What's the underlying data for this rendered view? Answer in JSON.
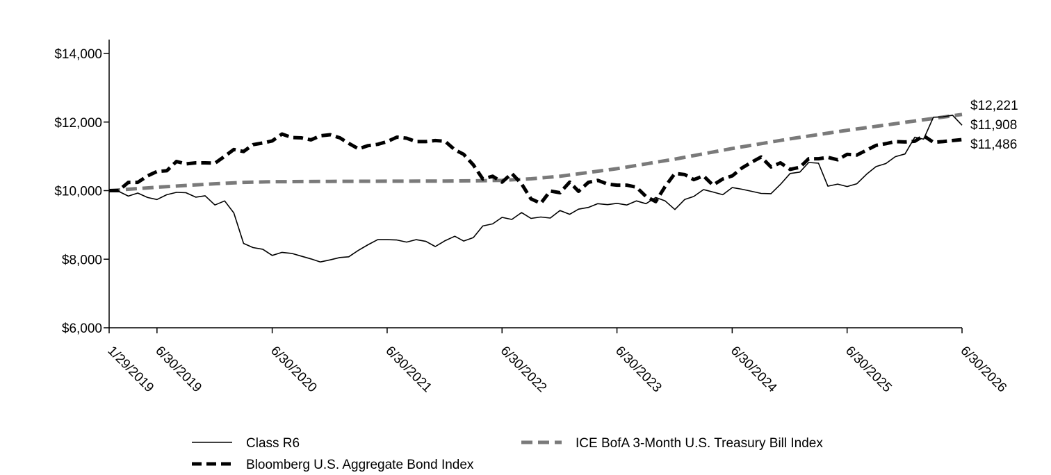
{
  "chart_data": {
    "type": "line",
    "title": "",
    "xlabel": "",
    "ylabel": "",
    "ylim": [
      6000,
      14000
    ],
    "y_ticks": [
      "$6,000",
      "$8,000",
      "$10,000",
      "$12,000",
      "$14,000"
    ],
    "y_tick_values": [
      6000,
      8000,
      10000,
      12000,
      14000
    ],
    "x_range": [
      "2019-01-29",
      "2026-06-30"
    ],
    "x_ticks": [
      {
        "date": "2019-01-29",
        "label": "1/29/2019"
      },
      {
        "date": "2019-06-30",
        "label": "6/30/2019"
      },
      {
        "date": "2020-06-30",
        "label": "6/30/2020"
      },
      {
        "date": "2021-06-30",
        "label": "6/30/2021"
      },
      {
        "date": "2022-06-30",
        "label": "6/30/2022"
      },
      {
        "date": "2023-06-30",
        "label": "6/30/2023"
      },
      {
        "date": "2024-06-30",
        "label": "6/30/2024"
      },
      {
        "date": "2025-06-30",
        "label": "6/30/2025"
      },
      {
        "date": "2026-06-30",
        "label": "6/30/2026"
      }
    ],
    "grid": false,
    "legend_position": "bottom",
    "colors": {
      "class_r6": "#000000",
      "agg_bond": "#000000",
      "tbill": "#7a7a7a"
    },
    "series": [
      {
        "key": "class_r6",
        "name": "Class R6",
        "end_label": "$11,908",
        "style": "solid-thin",
        "points": [
          [
            "2019-01-29",
            10000
          ],
          [
            "2019-02-28",
            9980
          ],
          [
            "2019-03-31",
            9840
          ],
          [
            "2019-04-30",
            9930
          ],
          [
            "2019-05-31",
            9800
          ],
          [
            "2019-06-30",
            9740
          ],
          [
            "2019-07-31",
            9880
          ],
          [
            "2019-08-31",
            9950
          ],
          [
            "2019-09-30",
            9940
          ],
          [
            "2019-10-31",
            9810
          ],
          [
            "2019-11-30",
            9850
          ],
          [
            "2019-12-31",
            9580
          ],
          [
            "2020-01-31",
            9700
          ],
          [
            "2020-02-29",
            9350
          ],
          [
            "2020-03-31",
            8460
          ],
          [
            "2020-04-30",
            8340
          ],
          [
            "2020-05-31",
            8290
          ],
          [
            "2020-06-30",
            8110
          ],
          [
            "2020-07-31",
            8200
          ],
          [
            "2020-08-31",
            8170
          ],
          [
            "2020-09-30",
            8090
          ],
          [
            "2020-10-31",
            8010
          ],
          [
            "2020-11-30",
            7920
          ],
          [
            "2020-12-31",
            7980
          ],
          [
            "2021-01-31",
            8050
          ],
          [
            "2021-02-28",
            8070
          ],
          [
            "2021-03-31",
            8260
          ],
          [
            "2021-04-30",
            8420
          ],
          [
            "2021-05-31",
            8570
          ],
          [
            "2021-06-30",
            8570
          ],
          [
            "2021-07-31",
            8560
          ],
          [
            "2021-08-31",
            8500
          ],
          [
            "2021-09-30",
            8570
          ],
          [
            "2021-10-31",
            8520
          ],
          [
            "2021-11-30",
            8370
          ],
          [
            "2021-12-31",
            8540
          ],
          [
            "2022-01-31",
            8670
          ],
          [
            "2022-02-28",
            8530
          ],
          [
            "2022-03-31",
            8630
          ],
          [
            "2022-04-30",
            8970
          ],
          [
            "2022-05-31",
            9030
          ],
          [
            "2022-06-30",
            9220
          ],
          [
            "2022-07-31",
            9160
          ],
          [
            "2022-08-31",
            9360
          ],
          [
            "2022-09-30",
            9190
          ],
          [
            "2022-10-31",
            9230
          ],
          [
            "2022-11-30",
            9200
          ],
          [
            "2022-12-31",
            9420
          ],
          [
            "2023-01-31",
            9310
          ],
          [
            "2023-02-28",
            9460
          ],
          [
            "2023-03-31",
            9510
          ],
          [
            "2023-04-30",
            9620
          ],
          [
            "2023-05-31",
            9590
          ],
          [
            "2023-06-30",
            9630
          ],
          [
            "2023-07-31",
            9580
          ],
          [
            "2023-08-31",
            9700
          ],
          [
            "2023-09-30",
            9620
          ],
          [
            "2023-10-31",
            9800
          ],
          [
            "2023-11-30",
            9700
          ],
          [
            "2023-12-31",
            9450
          ],
          [
            "2024-01-31",
            9740
          ],
          [
            "2024-02-29",
            9830
          ],
          [
            "2024-03-31",
            10030
          ],
          [
            "2024-04-30",
            9960
          ],
          [
            "2024-05-31",
            9880
          ],
          [
            "2024-06-30",
            10090
          ],
          [
            "2024-07-31",
            10040
          ],
          [
            "2024-08-31",
            9980
          ],
          [
            "2024-09-30",
            9920
          ],
          [
            "2024-10-31",
            9910
          ],
          [
            "2024-11-30",
            10180
          ],
          [
            "2024-12-31",
            10500
          ],
          [
            "2025-01-31",
            10540
          ],
          [
            "2025-02-28",
            10820
          ],
          [
            "2025-03-31",
            10800
          ],
          [
            "2025-04-30",
            10130
          ],
          [
            "2025-05-31",
            10190
          ],
          [
            "2025-06-30",
            10120
          ],
          [
            "2025-07-31",
            10200
          ],
          [
            "2025-08-31",
            10480
          ],
          [
            "2025-09-30",
            10700
          ],
          [
            "2025-10-31",
            10790
          ],
          [
            "2025-11-30",
            10990
          ],
          [
            "2025-12-31",
            11070
          ],
          [
            "2026-01-31",
            11560
          ],
          [
            "2026-02-28",
            11500
          ],
          [
            "2026-03-31",
            12140
          ],
          [
            "2026-04-30",
            12150
          ],
          [
            "2026-05-31",
            12200
          ],
          [
            "2026-06-30",
            11908
          ]
        ]
      },
      {
        "key": "agg_bond",
        "name": "Bloomberg U.S. Aggregate Bond Index",
        "end_label": "$11,486",
        "style": "dashed-thick",
        "points": [
          [
            "2019-01-29",
            10000
          ],
          [
            "2019-02-28",
            10000
          ],
          [
            "2019-03-31",
            10240
          ],
          [
            "2019-04-30",
            10240
          ],
          [
            "2019-05-31",
            10430
          ],
          [
            "2019-06-30",
            10560
          ],
          [
            "2019-07-31",
            10580
          ],
          [
            "2019-08-31",
            10850
          ],
          [
            "2019-09-30",
            10780
          ],
          [
            "2019-10-31",
            10810
          ],
          [
            "2019-11-30",
            10810
          ],
          [
            "2019-12-31",
            10800
          ],
          [
            "2020-01-31",
            11000
          ],
          [
            "2020-02-29",
            11200
          ],
          [
            "2020-03-31",
            11140
          ],
          [
            "2020-04-30",
            11340
          ],
          [
            "2020-05-31",
            11390
          ],
          [
            "2020-06-30",
            11450
          ],
          [
            "2020-07-31",
            11650
          ],
          [
            "2020-08-31",
            11550
          ],
          [
            "2020-09-30",
            11540
          ],
          [
            "2020-10-31",
            11480
          ],
          [
            "2020-11-30",
            11600
          ],
          [
            "2020-12-31",
            11630
          ],
          [
            "2021-01-31",
            11540
          ],
          [
            "2021-02-28",
            11380
          ],
          [
            "2021-03-31",
            11220
          ],
          [
            "2021-04-30",
            11310
          ],
          [
            "2021-05-31",
            11350
          ],
          [
            "2021-06-30",
            11430
          ],
          [
            "2021-07-31",
            11560
          ],
          [
            "2021-08-31",
            11530
          ],
          [
            "2021-09-30",
            11430
          ],
          [
            "2021-10-31",
            11430
          ],
          [
            "2021-11-30",
            11460
          ],
          [
            "2021-12-31",
            11440
          ],
          [
            "2022-01-31",
            11190
          ],
          [
            "2022-02-28",
            11060
          ],
          [
            "2022-03-31",
            10750
          ],
          [
            "2022-04-30",
            10340
          ],
          [
            "2022-05-31",
            10420
          ],
          [
            "2022-06-30",
            10250
          ],
          [
            "2022-07-31",
            10500
          ],
          [
            "2022-08-31",
            10200
          ],
          [
            "2022-09-30",
            9760
          ],
          [
            "2022-10-31",
            9630
          ],
          [
            "2022-11-30",
            9990
          ],
          [
            "2022-12-31",
            9940
          ],
          [
            "2023-01-31",
            10250
          ],
          [
            "2023-02-28",
            9980
          ],
          [
            "2023-03-31",
            10240
          ],
          [
            "2023-04-30",
            10300
          ],
          [
            "2023-05-31",
            10190
          ],
          [
            "2023-06-30",
            10160
          ],
          [
            "2023-07-31",
            10160
          ],
          [
            "2023-08-31",
            10100
          ],
          [
            "2023-09-30",
            9830
          ],
          [
            "2023-10-31",
            9680
          ],
          [
            "2023-11-30",
            10120
          ],
          [
            "2023-12-31",
            10500
          ],
          [
            "2024-01-31",
            10470
          ],
          [
            "2024-02-29",
            10320
          ],
          [
            "2024-03-31",
            10430
          ],
          [
            "2024-04-30",
            10160
          ],
          [
            "2024-05-31",
            10340
          ],
          [
            "2024-06-30",
            10430
          ],
          [
            "2024-07-31",
            10660
          ],
          [
            "2024-08-31",
            10830
          ],
          [
            "2024-09-30",
            10980
          ],
          [
            "2024-10-31",
            10690
          ],
          [
            "2024-11-30",
            10810
          ],
          [
            "2024-12-31",
            10620
          ],
          [
            "2025-01-31",
            10680
          ],
          [
            "2025-02-28",
            10930
          ],
          [
            "2025-03-31",
            10930
          ],
          [
            "2025-04-30",
            10970
          ],
          [
            "2025-05-31",
            10900
          ],
          [
            "2025-06-30",
            11060
          ],
          [
            "2025-07-31",
            11040
          ],
          [
            "2025-08-31",
            11180
          ],
          [
            "2025-09-30",
            11320
          ],
          [
            "2025-10-31",
            11370
          ],
          [
            "2025-11-30",
            11430
          ],
          [
            "2025-12-31",
            11420
          ],
          [
            "2026-01-31",
            11440
          ],
          [
            "2026-02-28",
            11600
          ],
          [
            "2026-03-31",
            11410
          ],
          [
            "2026-04-30",
            11430
          ],
          [
            "2026-05-31",
            11460
          ],
          [
            "2026-06-30",
            11486
          ]
        ]
      },
      {
        "key": "tbill",
        "name": "ICE BofA 3-Month U.S. Treasury Bill Index",
        "end_label": "$12,221",
        "style": "dashed-thick-gray",
        "points": [
          [
            "2019-01-29",
            10000
          ],
          [
            "2019-06-30",
            10100
          ],
          [
            "2019-12-31",
            10200
          ],
          [
            "2020-03-31",
            10240
          ],
          [
            "2020-06-30",
            10260
          ],
          [
            "2020-12-31",
            10270
          ],
          [
            "2021-06-30",
            10275
          ],
          [
            "2021-12-31",
            10280
          ],
          [
            "2022-03-31",
            10285
          ],
          [
            "2022-06-30",
            10300
          ],
          [
            "2022-09-30",
            10345
          ],
          [
            "2022-12-31",
            10420
          ],
          [
            "2023-06-30",
            10640
          ],
          [
            "2023-12-31",
            10920
          ],
          [
            "2024-06-30",
            11230
          ],
          [
            "2024-12-31",
            11510
          ],
          [
            "2025-06-30",
            11760
          ],
          [
            "2025-12-31",
            11990
          ],
          [
            "2026-06-30",
            12221
          ]
        ]
      }
    ],
    "legend": [
      {
        "key": "class_r6",
        "label": "Class R6"
      },
      {
        "key": "tbill",
        "label": "ICE BofA 3-Month U.S. Treasury Bill Index"
      },
      {
        "key": "agg_bond",
        "label": "Bloomberg U.S. Aggregate Bond Index"
      }
    ]
  }
}
